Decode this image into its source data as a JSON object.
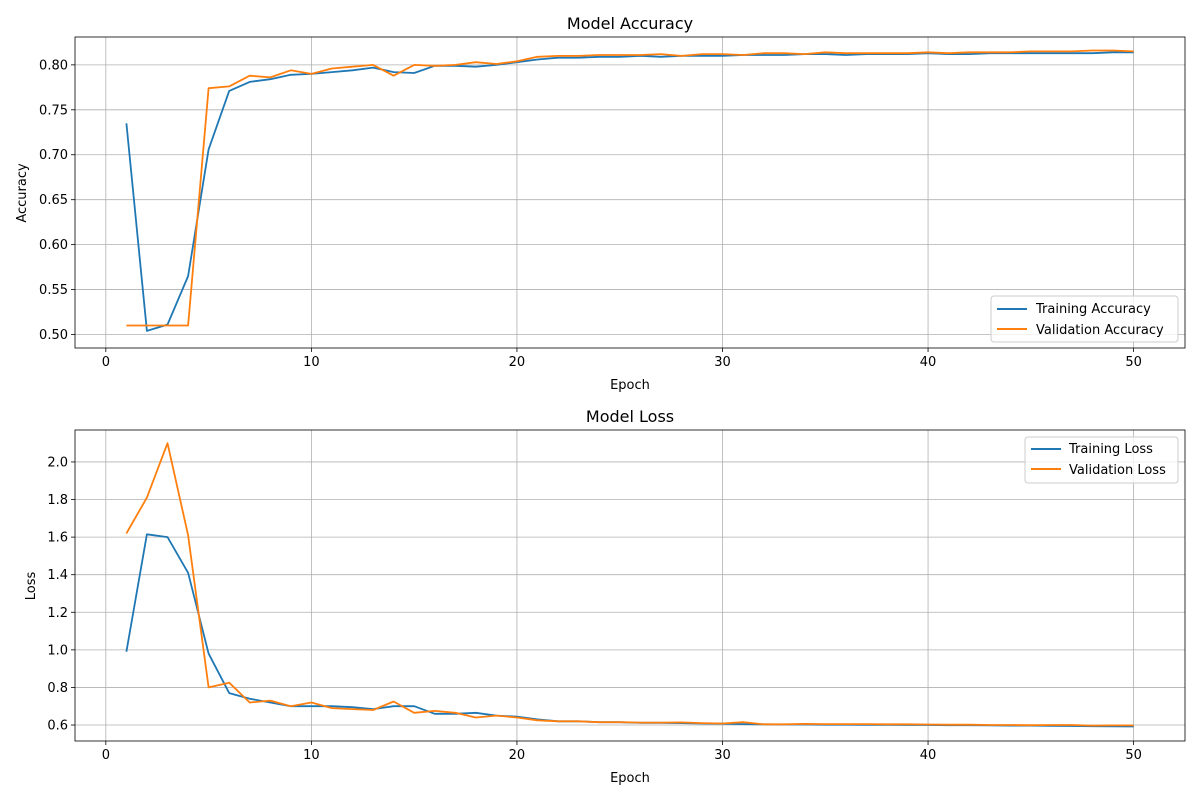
{
  "chart_data": [
    {
      "type": "line",
      "title": "Model Accuracy",
      "xlabel": "Epoch",
      "ylabel": "Accuracy",
      "xlim": [
        -1.5,
        52.5
      ],
      "ylim": [
        0.485,
        0.831
      ],
      "xticks": [
        "0",
        "10",
        "20",
        "30",
        "40",
        "50"
      ],
      "yticks": [
        "0.50",
        "0.55",
        "0.60",
        "0.65",
        "0.70",
        "0.75",
        "0.80"
      ],
      "grid": true,
      "legend_position": "lower-right",
      "x": [
        1,
        2,
        3,
        4,
        5,
        6,
        7,
        8,
        9,
        10,
        11,
        12,
        13,
        14,
        15,
        16,
        17,
        18,
        19,
        20,
        21,
        22,
        23,
        24,
        25,
        26,
        27,
        28,
        29,
        30,
        31,
        32,
        33,
        34,
        35,
        36,
        37,
        38,
        39,
        40,
        41,
        42,
        43,
        44,
        45,
        46,
        47,
        48,
        49,
        50
      ],
      "series": [
        {
          "name": "Training Accuracy",
          "color": "#1f77b4",
          "values": [
            0.735,
            0.504,
            0.511,
            0.565,
            0.706,
            0.771,
            0.781,
            0.784,
            0.789,
            0.79,
            0.792,
            0.794,
            0.797,
            0.792,
            0.791,
            0.799,
            0.799,
            0.798,
            0.8,
            0.803,
            0.806,
            0.808,
            0.808,
            0.809,
            0.809,
            0.81,
            0.809,
            0.81,
            0.81,
            0.81,
            0.811,
            0.811,
            0.811,
            0.812,
            0.812,
            0.811,
            0.812,
            0.812,
            0.812,
            0.813,
            0.812,
            0.812,
            0.813,
            0.813,
            0.813,
            0.813,
            0.813,
            0.813,
            0.814,
            0.814
          ]
        },
        {
          "name": "Validation Accuracy",
          "color": "#ff7f0e",
          "values": [
            0.51,
            0.51,
            0.51,
            0.51,
            0.774,
            0.776,
            0.788,
            0.786,
            0.794,
            0.79,
            0.796,
            0.798,
            0.8,
            0.788,
            0.8,
            0.799,
            0.8,
            0.803,
            0.801,
            0.804,
            0.809,
            0.81,
            0.81,
            0.811,
            0.811,
            0.811,
            0.812,
            0.81,
            0.812,
            0.812,
            0.811,
            0.813,
            0.813,
            0.812,
            0.814,
            0.813,
            0.813,
            0.813,
            0.813,
            0.814,
            0.813,
            0.814,
            0.814,
            0.814,
            0.815,
            0.815,
            0.815,
            0.816,
            0.816,
            0.815
          ]
        }
      ]
    },
    {
      "type": "line",
      "title": "Model Loss",
      "xlabel": "Epoch",
      "ylabel": "Loss",
      "xlim": [
        -1.5,
        52.5
      ],
      "ylim": [
        0.515,
        2.17
      ],
      "xticks": [
        "0",
        "10",
        "20",
        "30",
        "40",
        "50"
      ],
      "yticks": [
        "0.6",
        "0.8",
        "1.0",
        "1.2",
        "1.4",
        "1.6",
        "1.8",
        "2.0"
      ],
      "grid": true,
      "legend_position": "upper-right",
      "x": [
        1,
        2,
        3,
        4,
        5,
        6,
        7,
        8,
        9,
        10,
        11,
        12,
        13,
        14,
        15,
        16,
        17,
        18,
        19,
        20,
        21,
        22,
        23,
        24,
        25,
        26,
        27,
        28,
        29,
        30,
        31,
        32,
        33,
        34,
        35,
        36,
        37,
        38,
        39,
        40,
        41,
        42,
        43,
        44,
        45,
        46,
        47,
        48,
        49,
        50
      ],
      "series": [
        {
          "name": "Training Loss",
          "color": "#1f77b4",
          "values": [
            0.99,
            1.615,
            1.6,
            1.41,
            0.98,
            0.77,
            0.74,
            0.72,
            0.7,
            0.7,
            0.7,
            0.695,
            0.685,
            0.7,
            0.7,
            0.66,
            0.66,
            0.665,
            0.65,
            0.645,
            0.63,
            0.62,
            0.62,
            0.615,
            0.615,
            0.612,
            0.612,
            0.61,
            0.608,
            0.607,
            0.605,
            0.604,
            0.603,
            0.603,
            0.602,
            0.602,
            0.601,
            0.601,
            0.6,
            0.6,
            0.599,
            0.599,
            0.598,
            0.597,
            0.597,
            0.596,
            0.595,
            0.594,
            0.593,
            0.592
          ]
        },
        {
          "name": "Validation Loss",
          "color": "#ff7f0e",
          "values": [
            1.62,
            1.81,
            2.1,
            1.61,
            0.8,
            0.825,
            0.72,
            0.73,
            0.7,
            0.72,
            0.69,
            0.685,
            0.68,
            0.725,
            0.665,
            0.675,
            0.665,
            0.64,
            0.65,
            0.64,
            0.625,
            0.62,
            0.62,
            0.615,
            0.615,
            0.613,
            0.613,
            0.614,
            0.61,
            0.608,
            0.615,
            0.604,
            0.604,
            0.606,
            0.605,
            0.605,
            0.605,
            0.604,
            0.604,
            0.603,
            0.602,
            0.602,
            0.6,
            0.6,
            0.599,
            0.6,
            0.6,
            0.597,
            0.598,
            0.598
          ]
        }
      ]
    }
  ]
}
